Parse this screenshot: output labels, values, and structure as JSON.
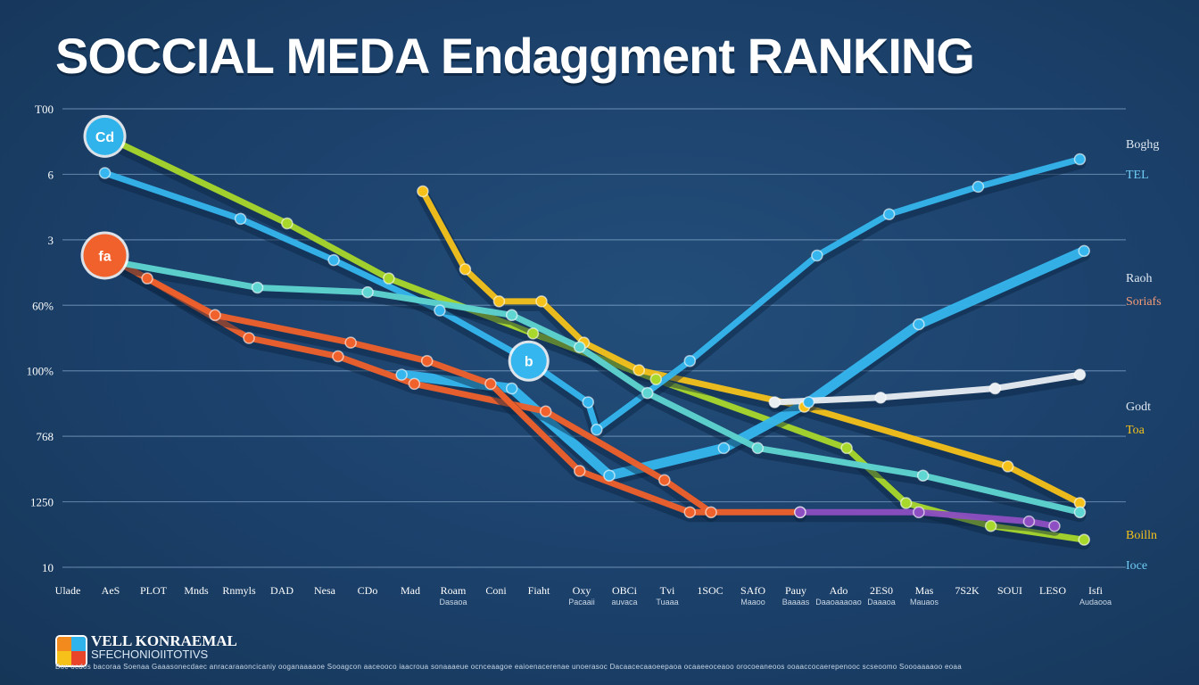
{
  "title": "SOCCIAL MEDA Endaggment RANKING",
  "colors": {
    "background": "#1b406a",
    "grid": "#8fb3d6",
    "lime": "#a9d82c",
    "yellow": "#f6c21a",
    "blue": "#35b6ee",
    "orange": "#f0612c",
    "white": "#e9eef3",
    "purple": "#8e4fc2",
    "teal": "#5fd6d2"
  },
  "footer": {
    "brand": "VELL KONRAEMAL",
    "subtitle": "SFECHONIOIITOTIVS",
    "note": "Boc ocdos bacoraa Soenaa Gaaasonecdaec anracaraaoncicaniy ooganaaaaoe Sooagcon aaceooco iaacroua sonaaaeue ocnceaagoe eaioenacerenae unoerasoc Dacaacecaaoeepaoa ocaaeeoceaoo orocoeaneoos ooaaccocaerepenooc scseoomo Soooaaaaoo eoaa"
  },
  "chart_data": {
    "type": "line",
    "title": "SOCCIAL MEDA Endaggment RANKING",
    "xlabel": "",
    "ylabel": "",
    "yticks": [
      "T00",
      "6",
      "3",
      "60%",
      "100%",
      "768",
      "1250",
      "10"
    ],
    "grid": true,
    "categories": [
      "Ulade",
      "AeS",
      "PLOT",
      "Mnds",
      "Rnmyls",
      "DAD",
      "Nesa",
      "CDo",
      "Mad",
      "Roam",
      "Coni",
      "Fiaht",
      "Oxy",
      "OBCi",
      "Tvi",
      "1SOC",
      "SAfO",
      "Pauy",
      "Ado",
      "2ES0",
      "Mas",
      "7S2K",
      "SOUI",
      "LESO",
      "Isfi"
    ],
    "category_sublabels": [
      "",
      "",
      "",
      "",
      "",
      "",
      "",
      "",
      "",
      "Dasaoa",
      "",
      "",
      "Pacaaii",
      "auvaca",
      "Tuaaa",
      "",
      "Maaoo",
      "Baaaas",
      "Daaoaaaoao",
      "Daaaoa",
      "Mauaos",
      "",
      "",
      "",
      "Audaooa"
    ],
    "end_labels": [
      "Boghg",
      "TEL",
      "Raoh",
      "Soriafs",
      "Godt",
      "Toa",
      "Boilln",
      "Ioce"
    ],
    "point_badges": [
      "Cd",
      "fa",
      "b"
    ],
    "series": [
      {
        "color": "lime",
        "x": [
          1.0,
          5.3,
          7.7,
          11.1,
          14.0,
          18.5,
          19.9,
          21.9,
          24.1
        ],
        "y": [
          9.4,
          7.5,
          6.3,
          5.1,
          4.1,
          2.6,
          1.4,
          0.9,
          0.6
        ]
      },
      {
        "color": "yellow",
        "x": [
          8.5,
          9.5,
          10.3,
          11.3,
          12.3,
          13.6,
          17.5,
          22.3,
          24.0
        ],
        "y": [
          8.2,
          6.5,
          5.8,
          5.8,
          4.9,
          4.3,
          3.5,
          2.2,
          1.4
        ]
      },
      {
        "color": "blue",
        "x": [
          1.0,
          4.2,
          6.4,
          8.9,
          11.0,
          12.4,
          12.6,
          14.8,
          17.8,
          19.5,
          21.6,
          24.0
        ],
        "y": [
          8.6,
          7.6,
          6.7,
          5.6,
          4.5,
          3.6,
          3.0,
          4.5,
          6.8,
          7.7,
          8.3,
          8.9
        ]
      },
      {
        "color": "blue",
        "x": [
          8.0,
          10.6,
          12.9,
          15.6,
          17.6,
          20.2,
          24.1
        ],
        "y": [
          4.2,
          3.9,
          2.0,
          2.6,
          3.6,
          5.3,
          6.9
        ]
      },
      {
        "color": "orange",
        "x": [
          1.0,
          2.0,
          4.4,
          6.5,
          8.3,
          11.4,
          14.2,
          15.3
        ],
        "y": [
          6.8,
          6.3,
          5.0,
          4.6,
          4.0,
          3.4,
          1.9,
          1.2
        ]
      },
      {
        "color": "orange",
        "x": [
          1.0,
          3.6,
          6.8,
          8.6,
          10.1,
          12.2,
          14.8,
          17.4
        ],
        "y": [
          6.8,
          5.5,
          4.9,
          4.5,
          4.0,
          2.1,
          1.2,
          1.2
        ]
      },
      {
        "color": "teal",
        "x": [
          1.0,
          4.6,
          7.2,
          10.6,
          12.2,
          13.8,
          16.4,
          20.3,
          24.0
        ],
        "y": [
          6.7,
          6.1,
          6.0,
          5.5,
          4.8,
          3.8,
          2.6,
          2.0,
          1.2
        ]
      },
      {
        "color": "white",
        "x": [
          16.8,
          19.3,
          22.0,
          24.0
        ],
        "y": [
          3.6,
          3.7,
          3.9,
          4.2
        ]
      },
      {
        "color": "purple",
        "x": [
          17.4,
          20.2,
          22.8,
          23.4
        ],
        "y": [
          1.2,
          1.2,
          1.0,
          0.9
        ]
      }
    ],
    "xlim": [
      0,
      25
    ],
    "ylim": [
      0,
      10
    ]
  }
}
